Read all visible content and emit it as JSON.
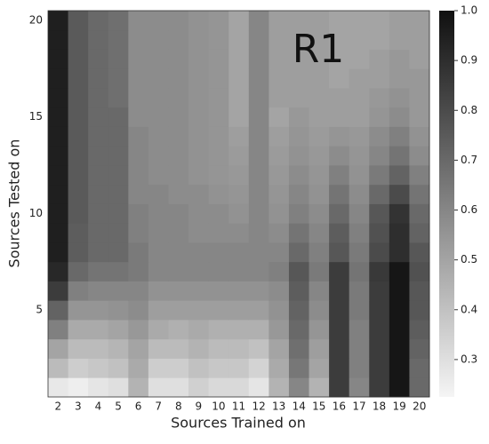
{
  "chart_data": {
    "type": "heatmap",
    "xlabel": "Sources Trained on",
    "ylabel": "Sources Tested on",
    "annotation": "R1",
    "x": [
      2,
      3,
      4,
      5,
      6,
      7,
      8,
      9,
      10,
      11,
      12,
      13,
      14,
      15,
      16,
      17,
      18,
      19,
      20
    ],
    "y": [
      1,
      2,
      3,
      4,
      5,
      6,
      7,
      8,
      9,
      10,
      11,
      12,
      13,
      14,
      15,
      16,
      17,
      18,
      19,
      20
    ],
    "ylim": [
      0.5,
      20.5
    ],
    "yticks": [
      5,
      10,
      15,
      20
    ],
    "clim": [
      0.225,
      1.0
    ],
    "cticks": [
      0.3,
      0.4,
      0.5,
      0.6,
      0.7,
      0.8,
      0.9,
      {
        "value": 1,
        "label": "1.0"
      }
    ],
    "colormap": "gray-reversed",
    "z": [
      [
        0.27,
        0.25,
        0.28,
        0.3,
        0.45,
        0.3,
        0.3,
        0.35,
        0.32,
        0.32,
        0.28,
        0.45,
        0.6,
        0.45,
        0.85,
        0.6,
        0.85,
        0.98,
        0.7
      ],
      [
        0.42,
        0.36,
        0.38,
        0.4,
        0.48,
        0.36,
        0.36,
        0.4,
        0.38,
        0.38,
        0.34,
        0.48,
        0.65,
        0.5,
        0.85,
        0.62,
        0.85,
        0.98,
        0.7
      ],
      [
        0.5,
        0.42,
        0.42,
        0.44,
        0.5,
        0.42,
        0.42,
        0.45,
        0.42,
        0.42,
        0.4,
        0.5,
        0.68,
        0.52,
        0.85,
        0.62,
        0.85,
        0.98,
        0.72
      ],
      [
        0.62,
        0.48,
        0.48,
        0.5,
        0.54,
        0.48,
        0.46,
        0.48,
        0.46,
        0.46,
        0.46,
        0.54,
        0.7,
        0.55,
        0.85,
        0.62,
        0.85,
        0.98,
        0.74
      ],
      [
        0.72,
        0.55,
        0.55,
        0.56,
        0.58,
        0.52,
        0.52,
        0.52,
        0.52,
        0.52,
        0.52,
        0.56,
        0.72,
        0.58,
        0.85,
        0.64,
        0.85,
        0.98,
        0.76
      ],
      [
        0.85,
        0.62,
        0.6,
        0.6,
        0.6,
        0.56,
        0.56,
        0.56,
        0.56,
        0.56,
        0.56,
        0.58,
        0.74,
        0.6,
        0.85,
        0.64,
        0.85,
        0.98,
        0.76
      ],
      [
        0.92,
        0.7,
        0.66,
        0.66,
        0.64,
        0.6,
        0.6,
        0.6,
        0.6,
        0.6,
        0.6,
        0.62,
        0.76,
        0.64,
        0.85,
        0.66,
        0.86,
        0.98,
        0.78
      ],
      [
        0.95,
        0.74,
        0.7,
        0.7,
        0.64,
        0.6,
        0.6,
        0.6,
        0.6,
        0.6,
        0.6,
        0.6,
        0.7,
        0.62,
        0.76,
        0.64,
        0.8,
        0.9,
        0.76
      ],
      [
        0.95,
        0.74,
        0.7,
        0.7,
        0.62,
        0.6,
        0.6,
        0.58,
        0.58,
        0.58,
        0.6,
        0.58,
        0.66,
        0.6,
        0.74,
        0.62,
        0.78,
        0.9,
        0.72
      ],
      [
        0.95,
        0.75,
        0.7,
        0.7,
        0.62,
        0.6,
        0.6,
        0.58,
        0.58,
        0.56,
        0.6,
        0.56,
        0.62,
        0.58,
        0.7,
        0.6,
        0.76,
        0.88,
        0.7
      ],
      [
        0.95,
        0.75,
        0.7,
        0.7,
        0.6,
        0.6,
        0.58,
        0.58,
        0.56,
        0.55,
        0.6,
        0.55,
        0.6,
        0.56,
        0.66,
        0.58,
        0.7,
        0.8,
        0.66
      ],
      [
        0.95,
        0.75,
        0.7,
        0.7,
        0.6,
        0.58,
        0.58,
        0.56,
        0.55,
        0.54,
        0.6,
        0.54,
        0.58,
        0.55,
        0.62,
        0.56,
        0.64,
        0.72,
        0.62
      ],
      [
        0.95,
        0.75,
        0.7,
        0.7,
        0.6,
        0.58,
        0.58,
        0.56,
        0.55,
        0.53,
        0.6,
        0.53,
        0.56,
        0.54,
        0.58,
        0.55,
        0.6,
        0.66,
        0.58
      ],
      [
        0.95,
        0.75,
        0.7,
        0.7,
        0.6,
        0.58,
        0.58,
        0.56,
        0.55,
        0.52,
        0.6,
        0.52,
        0.55,
        0.53,
        0.55,
        0.54,
        0.58,
        0.62,
        0.56
      ],
      [
        0.95,
        0.75,
        0.7,
        0.7,
        0.58,
        0.58,
        0.58,
        0.56,
        0.55,
        0.5,
        0.6,
        0.5,
        0.54,
        0.52,
        0.52,
        0.52,
        0.55,
        0.58,
        0.54
      ],
      [
        0.95,
        0.75,
        0.7,
        0.68,
        0.58,
        0.58,
        0.58,
        0.56,
        0.55,
        0.5,
        0.6,
        0.52,
        0.52,
        0.52,
        0.52,
        0.52,
        0.54,
        0.56,
        0.54
      ],
      [
        0.95,
        0.75,
        0.7,
        0.68,
        0.58,
        0.58,
        0.58,
        0.56,
        0.55,
        0.5,
        0.6,
        0.52,
        0.52,
        0.52,
        0.5,
        0.52,
        0.52,
        0.54,
        0.54
      ],
      [
        0.95,
        0.75,
        0.7,
        0.68,
        0.58,
        0.58,
        0.58,
        0.56,
        0.55,
        0.5,
        0.6,
        0.52,
        0.52,
        0.52,
        0.5,
        0.5,
        0.52,
        0.54,
        0.52
      ],
      [
        0.95,
        0.75,
        0.7,
        0.68,
        0.58,
        0.58,
        0.58,
        0.56,
        0.55,
        0.5,
        0.6,
        0.52,
        0.52,
        0.52,
        0.5,
        0.5,
        0.5,
        0.52,
        0.52
      ],
      [
        0.95,
        0.75,
        0.7,
        0.68,
        0.58,
        0.58,
        0.58,
        0.56,
        0.55,
        0.5,
        0.6,
        0.52,
        0.52,
        0.52,
        0.5,
        0.5,
        0.5,
        0.52,
        0.52
      ]
    ]
  }
}
